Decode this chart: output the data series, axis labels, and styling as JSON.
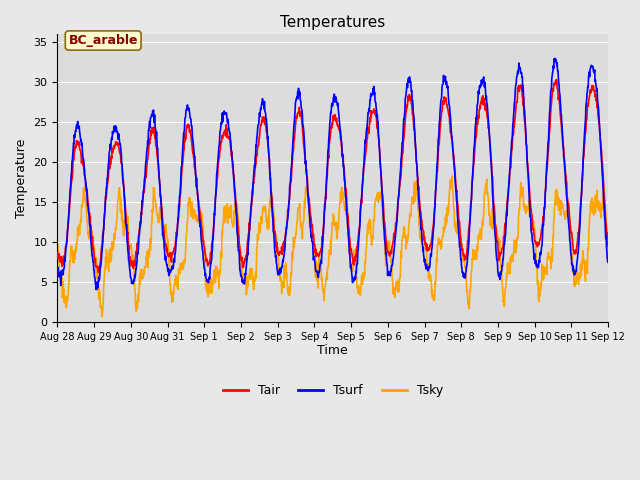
{
  "title": "Temperatures",
  "xlabel": "Time",
  "ylabel": "Temperature",
  "ylim": [
    0,
    36
  ],
  "yticks": [
    0,
    5,
    10,
    15,
    20,
    25,
    30,
    35
  ],
  "line_colors": {
    "Tair": "#FF0000",
    "Tsurf": "#0000FF",
    "Tsky": "#FFA500"
  },
  "line_widths": {
    "Tair": 1.2,
    "Tsurf": 1.2,
    "Tsky": 1.2
  },
  "fig_bg_color": "#E8E8E8",
  "plot_bg": "#DCDCDC",
  "grid_color": "#FFFFFF",
  "annotation_text": "BC_arable",
  "annotation_color": "#8B0000",
  "annotation_bg": "#FFFACD",
  "annotation_border": "#8B6914",
  "tick_labels": [
    "Aug 28",
    "Aug 29",
    "Aug 30",
    "Aug 31",
    "Sep 1",
    "Sep 2",
    "Sep 3",
    "Sep 4",
    "Sep 5",
    "Sep 6",
    "Sep 7",
    "Sep 8",
    "Sep 9",
    "Sep 10",
    "Sep 11",
    "Sep 12"
  ],
  "tick_positions": [
    0,
    1,
    2,
    3,
    4,
    5,
    6,
    7,
    8,
    9,
    10,
    11,
    12,
    13,
    14,
    15
  ],
  "n_pts": 1440,
  "n_days": 15,
  "seed": 17
}
